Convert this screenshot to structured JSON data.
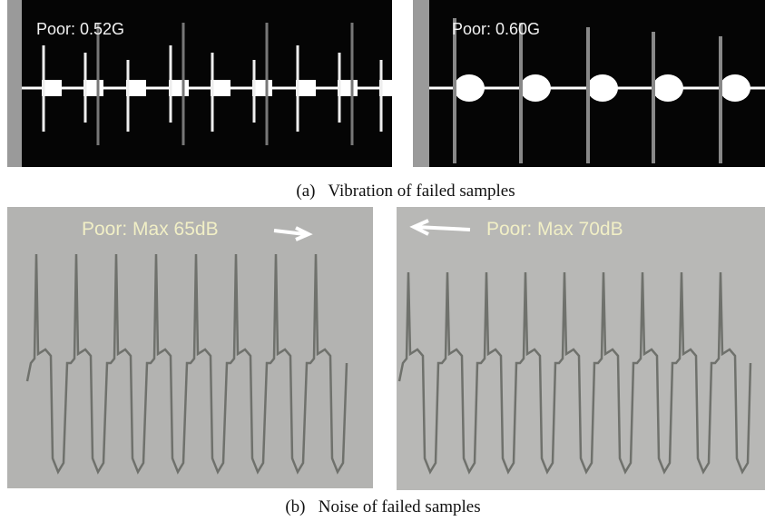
{
  "panels": {
    "vibration_left": {
      "label": "Poor: 0.52G"
    },
    "vibration_right": {
      "label": "Poor: 0.60G"
    },
    "vibration_caption": "(a)   Vibration of failed samples",
    "noise_left": {
      "label": "Poor: Max 65dB"
    },
    "noise_right": {
      "label": "Poor: Max 70dB"
    },
    "noise_caption": "(b)   Noise of failed samples"
  }
}
